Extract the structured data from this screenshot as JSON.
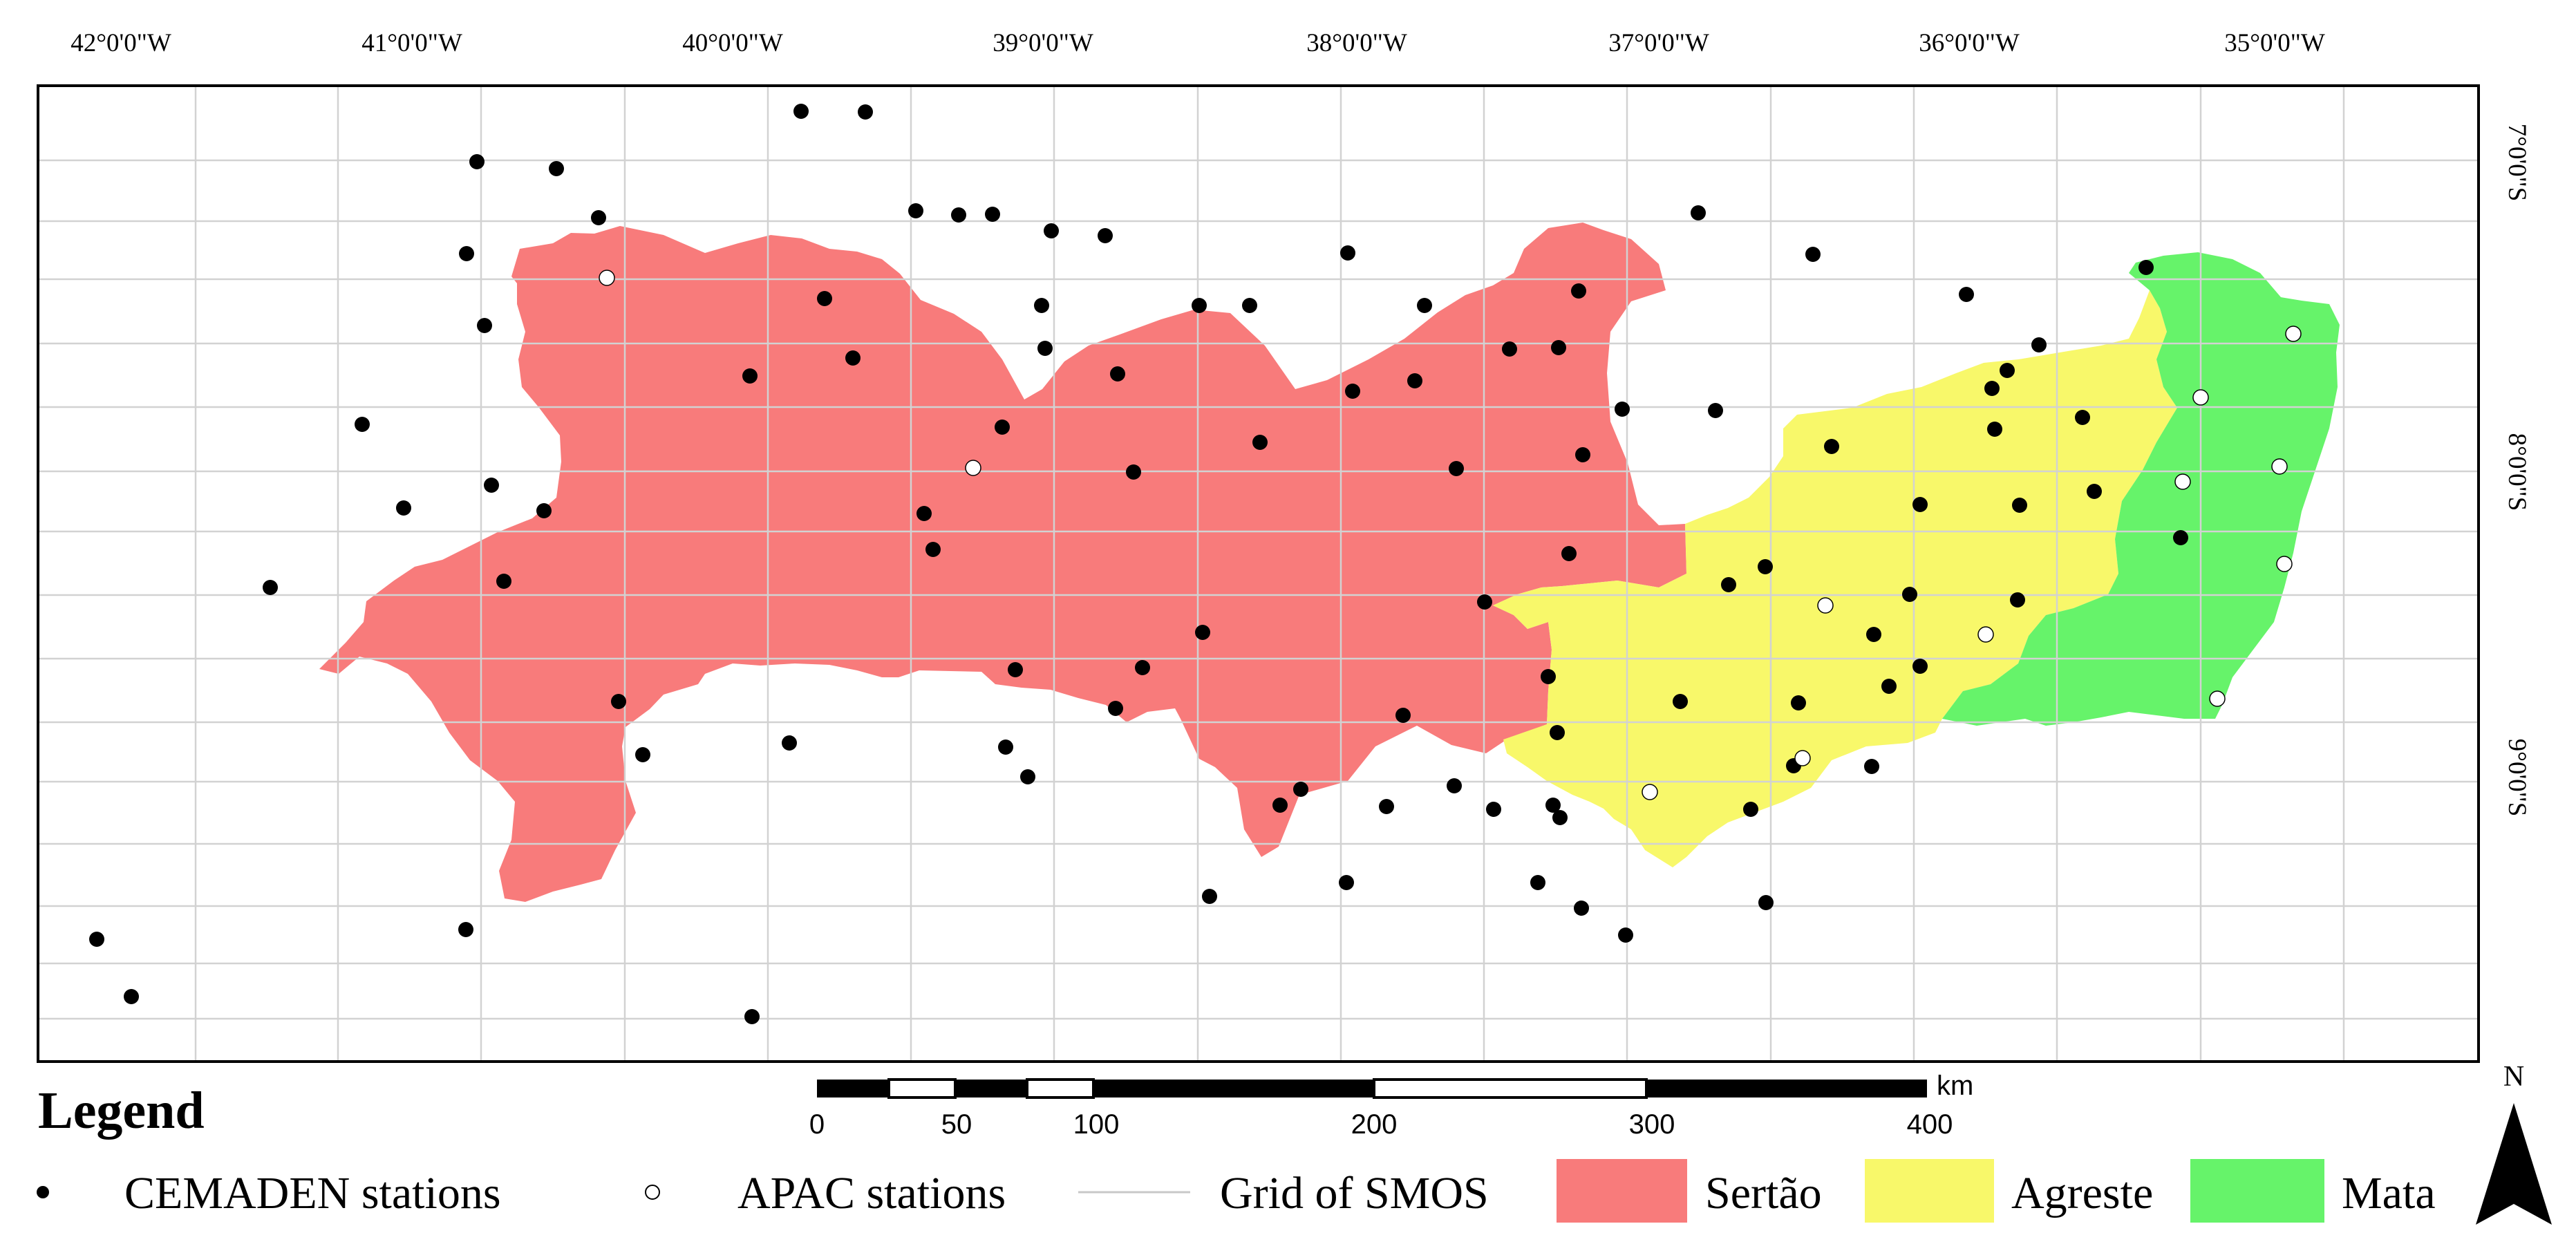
{
  "map": {
    "lon_labels": [
      "42°0'0\"W",
      "41°0'0\"W",
      "40°0'0\"W",
      "39°0'0\"W",
      "38°0'0\"W",
      "37°0'0\"W",
      "36°0'0\"W",
      "35°0'0\"W"
    ],
    "lat_labels": [
      "7°0'0\"S",
      "8°0'0\"S",
      "9°0'0\"S"
    ],
    "north_label": "N",
    "regions": [
      {
        "name": "Sertão",
        "color": "#f87b7b"
      },
      {
        "name": "Agreste",
        "color": "#f8f86a"
      },
      {
        "name": "Mata",
        "color": "#66f36a"
      }
    ],
    "station_colors": {
      "cemaden": "#000000",
      "apac": "#ffffff",
      "grid": "#d2d2d2"
    }
  },
  "legend": {
    "title": "Legend",
    "cemaden": "CEMADEN stations",
    "apac": "APAC stations",
    "grid": "Grid of SMOS",
    "sertao": "Sertão",
    "agreste": "Agreste",
    "mata": "Mata"
  },
  "scale": {
    "unit": "km",
    "labels": [
      "0",
      "50",
      "100",
      "200",
      "300",
      "400"
    ]
  }
}
